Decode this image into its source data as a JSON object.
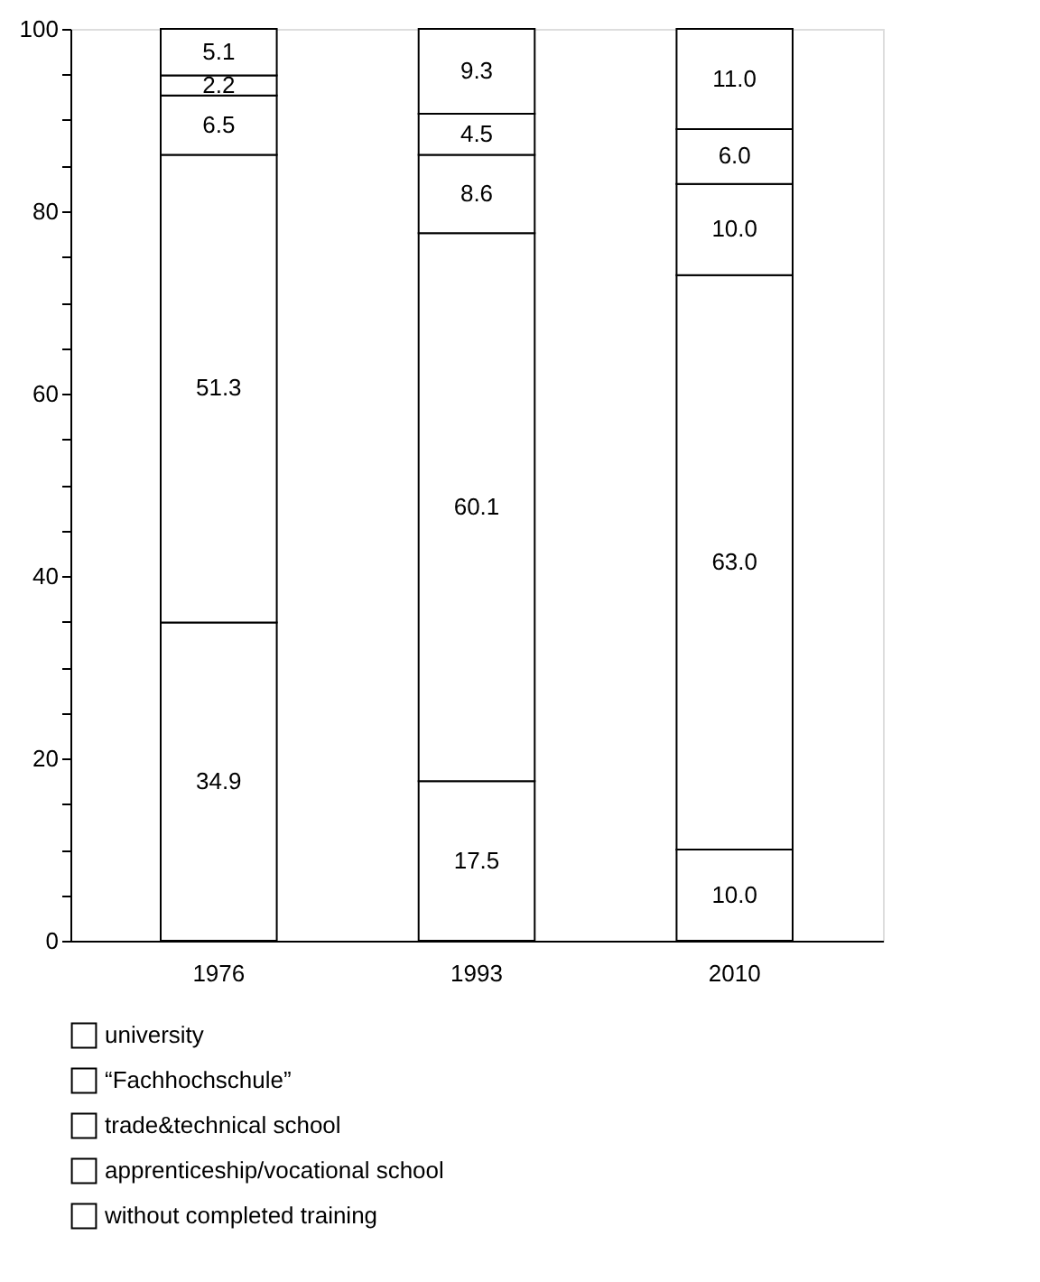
{
  "chart_data": {
    "type": "bar",
    "stacked": true,
    "categories": [
      "1976",
      "1993",
      "2010"
    ],
    "ylim": [
      0,
      100
    ],
    "yticks": [
      0,
      {
        "value": 5,
        "label": null
      },
      {
        "value": 10,
        "label": null
      },
      {
        "value": 15,
        "label": null
      },
      20,
      {
        "value": 25,
        "label": null
      },
      {
        "value": 30,
        "label": null
      },
      {
        "value": 35,
        "label": null
      },
      40,
      {
        "value": 45,
        "label": null
      },
      {
        "value": 50,
        "label": null
      },
      {
        "value": 55,
        "label": null
      },
      60,
      {
        "value": 65,
        "label": null
      },
      {
        "value": 70,
        "label": null
      },
      {
        "value": 75,
        "label": null
      },
      80,
      {
        "value": 85,
        "label": null
      },
      {
        "value": 90,
        "label": null
      },
      {
        "value": 95,
        "label": null
      },
      100
    ],
    "grid": false,
    "legend": "bottom",
    "series": [
      {
        "name": "without completed training",
        "color": "#ffffff",
        "values": [
          34.9,
          17.5,
          10.0
        ],
        "value_labels": [
          "34.9",
          "17.5",
          "10.0"
        ]
      },
      {
        "name": "apprenticeship/vocational school",
        "color": "#ffffff",
        "values": [
          51.3,
          60.1,
          63.0
        ],
        "value_labels": [
          "51.3",
          "60.1",
          "63.0"
        ]
      },
      {
        "name": "trade&technical school",
        "color": "#ffffff",
        "values": [
          6.5,
          8.6,
          10.0
        ],
        "value_labels": [
          "6.5",
          "8.6",
          "10.0"
        ]
      },
      {
        "name": "“Fachhochschule”",
        "color": "#ffffff",
        "values": [
          2.2,
          4.5,
          6.0
        ],
        "value_labels": [
          "2.2",
          "4.5",
          "6.0"
        ]
      },
      {
        "name": "university",
        "color": "#ffffff",
        "values": [
          5.1,
          9.3,
          11.0
        ],
        "value_labels": [
          "5.1",
          "9.3",
          "11.0"
        ]
      }
    ]
  }
}
